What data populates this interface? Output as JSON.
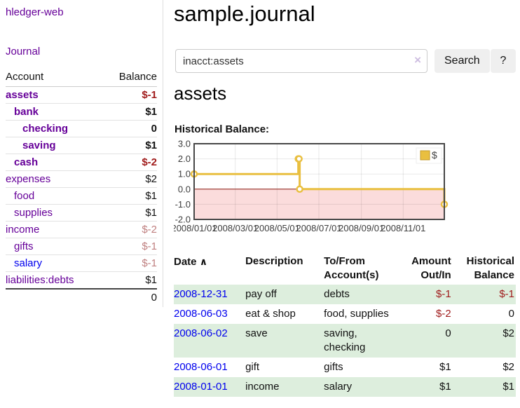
{
  "app": {
    "title": "hledger-web"
  },
  "colors": {
    "link_purple": "#660099",
    "link_blue": "#0000ee",
    "negative": "#a01c1c",
    "muted_negative": "#bf7f7f",
    "row_green": "#ddeedd",
    "series_gold": "#e9bf40",
    "negative_region_pink": "#fbdcdc",
    "zero_line_red": "#8b1a10"
  },
  "sidebar": {
    "nav": {
      "journal_label": "Journal"
    },
    "accounts_table": {
      "headers": {
        "account": "Account",
        "balance": "Balance"
      },
      "rows": [
        {
          "account": "assets",
          "balance": "$-1",
          "indent": 0,
          "bold": true,
          "balance_style": "neg"
        },
        {
          "account": "bank",
          "balance": "$1",
          "indent": 1,
          "bold": true,
          "balance_style": "normal"
        },
        {
          "account": "checking",
          "balance": "0",
          "indent": 2,
          "bold": true,
          "balance_style": "normal"
        },
        {
          "account": "saving",
          "balance": "$1",
          "indent": 2,
          "bold": true,
          "balance_style": "normal"
        },
        {
          "account": "cash",
          "balance": "$-2",
          "indent": 1,
          "bold": true,
          "balance_style": "neg"
        },
        {
          "account": "expenses",
          "balance": "$2",
          "indent": 0,
          "bold": false,
          "balance_style": "normal"
        },
        {
          "account": "food",
          "balance": "$1",
          "indent": 1,
          "bold": false,
          "balance_style": "normal"
        },
        {
          "account": "supplies",
          "balance": "$1",
          "indent": 1,
          "bold": false,
          "balance_style": "normal"
        },
        {
          "account": "income",
          "balance": "$-2",
          "indent": 0,
          "bold": false,
          "balance_style": "muted-neg"
        },
        {
          "account": "gifts",
          "balance": "$-1",
          "indent": 1,
          "bold": false,
          "balance_style": "muted-neg"
        },
        {
          "account": "salary",
          "balance": "$-1",
          "indent": 1,
          "bold": false,
          "balance_style": "muted-neg",
          "link_style": "blue"
        },
        {
          "account": "liabilities:debts",
          "balance": "$1",
          "indent": 0,
          "bold": false,
          "balance_style": "normal"
        }
      ],
      "total": "0"
    }
  },
  "header": {
    "title": "sample.journal"
  },
  "search": {
    "value": "inacct:assets",
    "clear_icon": "×",
    "button_label": "Search",
    "help_label": "?"
  },
  "main": {
    "account_heading": "assets",
    "chart_label": "Historical Balance:"
  },
  "chart_data": {
    "type": "line",
    "title": "Historical Balance",
    "step": true,
    "grid": true,
    "legend_position": "top-right",
    "legend": [
      {
        "label": "$"
      }
    ],
    "x_range": [
      "2008-01-01",
      "2008-12-31"
    ],
    "x_ticks": [
      "2008/01/01",
      "2008/03/01",
      "2008/05/01",
      "2008/07/01",
      "2008/09/01",
      "2008/11/01"
    ],
    "y_ticks": [
      3.0,
      2.0,
      1.0,
      0.0,
      -1.0,
      -2.0
    ],
    "ylim": [
      -2,
      3
    ],
    "negative_region_shaded": true,
    "series": [
      {
        "name": "$",
        "points": [
          [
            "2008-01-01",
            1.0
          ],
          [
            "2008-06-01",
            2.0
          ],
          [
            "2008-06-02",
            2.0
          ],
          [
            "2008-06-03",
            0.0
          ],
          [
            "2008-12-31",
            -1.0
          ]
        ]
      }
    ]
  },
  "transactions": {
    "headers": {
      "date": "Date",
      "sort_indicator": "∧",
      "description": "Description",
      "accounts": "To/From Account(s)",
      "amount": "Amount Out/In",
      "balance": "Historical Balance"
    },
    "rows": [
      {
        "date": "2008-12-31",
        "description": "pay off",
        "accounts": "debts",
        "amount": "$-1",
        "balance": "$-1",
        "amount_neg": true,
        "balance_neg": true,
        "green": true
      },
      {
        "date": "2008-06-03",
        "description": "eat & shop",
        "accounts": "food, supplies",
        "amount": "$-2",
        "balance": "0",
        "amount_neg": true,
        "balance_neg": false,
        "green": false
      },
      {
        "date": "2008-06-02",
        "description": "save",
        "accounts": "saving, checking",
        "amount": "0",
        "balance": "$2",
        "amount_neg": false,
        "balance_neg": false,
        "green": true
      },
      {
        "date": "2008-06-01",
        "description": "gift",
        "accounts": "gifts",
        "amount": "$1",
        "balance": "$2",
        "amount_neg": false,
        "balance_neg": false,
        "green": false
      },
      {
        "date": "2008-01-01",
        "description": "income",
        "accounts": "salary",
        "amount": "$1",
        "balance": "$1",
        "amount_neg": false,
        "balance_neg": false,
        "green": true
      }
    ]
  }
}
